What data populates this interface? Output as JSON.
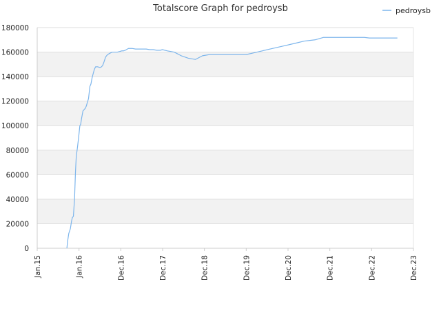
{
  "chart_data": {
    "type": "line",
    "title": "Totalscore Graph for pedroysb",
    "xlabel": "",
    "ylabel": "",
    "legend": {
      "position": "top-right",
      "entries": [
        "pedroysb"
      ]
    },
    "grid": true,
    "x_ticks": [
      "Jan.15",
      "Jan.16",
      "Dec.16",
      "Dec.17",
      "Dec.18",
      "Dec.19",
      "Dec.20",
      "Dec.21",
      "Dec.22",
      "Dec.23"
    ],
    "y_ticks": [
      "0",
      "20000",
      "40000",
      "60000",
      "80000",
      "100000",
      "120000",
      "140000",
      "160000",
      "180000"
    ],
    "ylim": [
      0,
      180000
    ],
    "xlim": [
      "2015-01",
      "2023-12"
    ],
    "series": [
      {
        "name": "pedroysb",
        "color": "#7cb5ec",
        "x": [
          "2015-09-15",
          "2015-09-20",
          "2015-10-01",
          "2015-10-15",
          "2015-10-25",
          "2015-11-01",
          "2015-11-10",
          "2015-11-20",
          "2015-11-28",
          "2015-12-05",
          "2015-12-15",
          "2015-12-25",
          "2016-01-05",
          "2016-01-12",
          "2016-01-20",
          "2016-02-01",
          "2016-02-10",
          "2016-02-20",
          "2016-03-01",
          "2016-03-10",
          "2016-03-20",
          "2016-04-01",
          "2016-04-10",
          "2016-04-20",
          "2016-05-01",
          "2016-05-10",
          "2016-05-20",
          "2016-06-01",
          "2016-06-10",
          "2016-06-20",
          "2016-07-01",
          "2016-07-10",
          "2016-07-20",
          "2016-08-01",
          "2016-08-15",
          "2016-09-01",
          "2016-09-20",
          "2016-10-10",
          "2016-10-25",
          "2016-11-10",
          "2016-11-25",
          "2016-12-15",
          "2017-01-01",
          "2017-01-15",
          "2017-02-01",
          "2017-03-01",
          "2017-04-01",
          "2017-05-01",
          "2017-06-01",
          "2017-07-01",
          "2017-08-01",
          "2017-09-01",
          "2017-10-01",
          "2017-11-01",
          "2017-12-01",
          "2017-12-20",
          "2018-02-01",
          "2018-04-01",
          "2018-06-01",
          "2018-08-01",
          "2018-10-01",
          "2018-12-01",
          "2019-02-01",
          "2019-04-01",
          "2019-06-01",
          "2019-08-01",
          "2019-10-01",
          "2019-11-15",
          "2019-12-15",
          "2020-02-01",
          "2020-05-01",
          "2020-08-01",
          "2020-11-01",
          "2021-02-01",
          "2021-05-01",
          "2021-08-01",
          "2021-10-15",
          "2021-11-10",
          "2021-11-25",
          "2022-01-01",
          "2022-04-01",
          "2022-07-01",
          "2022-10-01",
          "2022-11-15",
          "2023-01-01",
          "2023-04-01",
          "2023-06-01",
          "2023-07-15"
        ],
        "values": [
          0,
          5000,
          12000,
          16000,
          22000,
          25000,
          26000,
          40000,
          62000,
          75000,
          82000,
          90000,
          100000,
          101000,
          106000,
          112000,
          113000,
          114000,
          116000,
          119000,
          122000,
          132000,
          134000,
          139000,
          143000,
          146000,
          148000,
          148000,
          148000,
          147500,
          147500,
          148000,
          149000,
          152000,
          156000,
          158000,
          159000,
          160000,
          160000,
          160000,
          160000,
          160500,
          161000,
          161000,
          161500,
          163000,
          163000,
          162500,
          162500,
          162500,
          162500,
          162000,
          162000,
          161500,
          161500,
          162000,
          161000,
          160000,
          157000,
          155000,
          154000,
          157000,
          158000,
          158000,
          158000,
          158000,
          158000,
          158000,
          158000,
          159000,
          161000,
          163000,
          165000,
          167000,
          169000,
          170000,
          172000,
          172000,
          172000,
          172000,
          172000,
          172000,
          172000,
          171500,
          171500,
          171500,
          171500,
          171500
        ]
      }
    ]
  }
}
